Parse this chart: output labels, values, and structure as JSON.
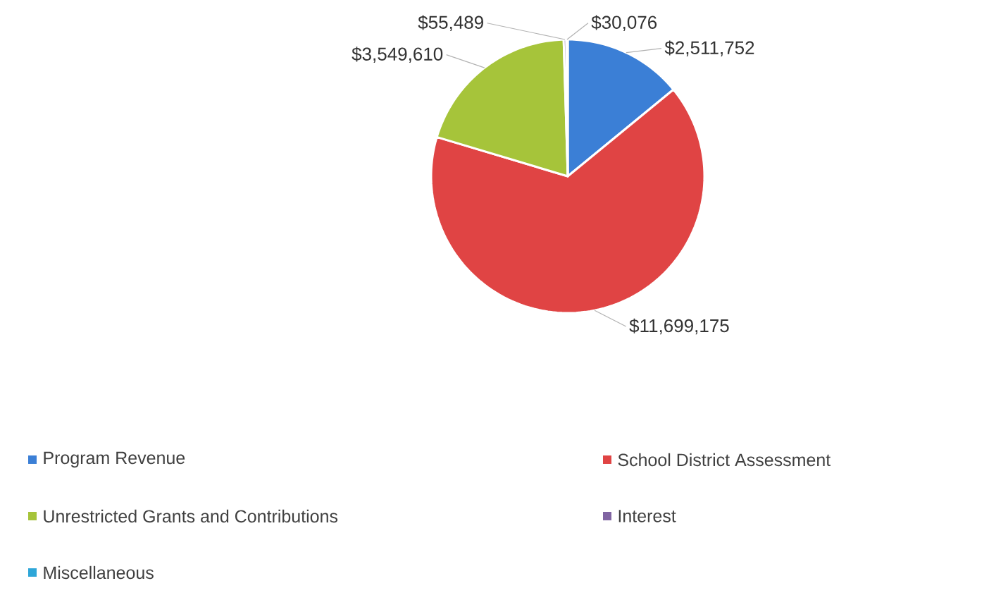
{
  "chart_data": {
    "type": "pie",
    "categories": [
      "Program Revenue",
      "School District Assessment",
      "Unrestricted Grants and Contributions",
      "Interest",
      "Miscellaneous"
    ],
    "values": [
      2511752,
      11699175,
      3549610,
      55489,
      30076
    ],
    "colors": [
      "#3b7fd6",
      "#e04444",
      "#a6c43a",
      "#8064a2",
      "#2ea6d8"
    ],
    "value_labels": [
      "$2,511,752",
      "$11,699,175",
      "$3,549,610",
      "$55,489",
      "$30,076"
    ],
    "legend": "bottom"
  }
}
